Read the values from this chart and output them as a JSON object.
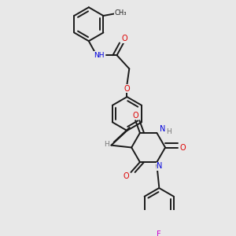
{
  "background_color": "#e8e8e8",
  "bond_color": "#1a1a1a",
  "bond_width": 1.4,
  "figsize": [
    3.0,
    3.0
  ],
  "dpi": 100,
  "colors": {
    "N": "#0000dd",
    "O": "#dd0000",
    "F": "#cc00cc",
    "H": "#777777",
    "C": "#1a1a1a"
  }
}
